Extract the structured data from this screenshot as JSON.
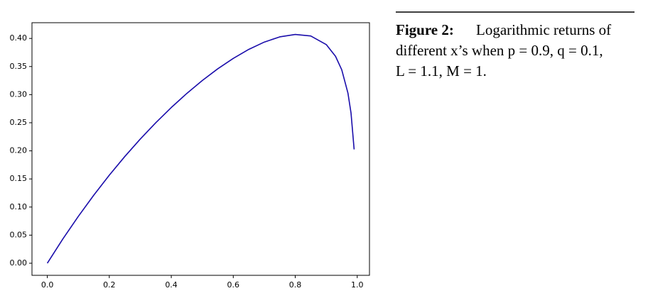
{
  "chart_data": {
    "type": "line",
    "x": [
      0,
      0.05,
      0.1,
      0.15,
      0.2,
      0.25,
      0.3,
      0.35,
      0.4,
      0.45,
      0.5,
      0.55,
      0.6,
      0.65,
      0.7,
      0.75,
      0.8,
      0.85,
      0.9,
      0.93,
      0.95,
      0.97,
      0.98,
      0.99
    ],
    "series": [
      {
        "color": "#1a0dab",
        "values": [
          0,
          0.0431,
          0.0834,
          0.1212,
          0.1567,
          0.1899,
          0.221,
          0.2501,
          0.2771,
          0.3021,
          0.3251,
          0.346,
          0.3645,
          0.3805,
          0.3935,
          0.4028,
          0.4071,
          0.4044,
          0.3891,
          0.3682,
          0.3443,
          0.3028,
          0.2671,
          0.2025
        ]
      }
    ],
    "xlim": [
      -0.0495,
      1.0395
    ],
    "ylim": [
      -0.0215,
      0.428
    ],
    "xticks": [
      {
        "value": 0,
        "label": "0.0"
      },
      0.2,
      0.4,
      0.6,
      0.8,
      {
        "value": 1,
        "label": "1.0"
      }
    ],
    "yticks": [
      {
        "value": 0,
        "label": "0.00"
      },
      0.05,
      {
        "value": 0.1,
        "label": "0.10"
      },
      0.15,
      {
        "value": 0.2,
        "label": "0.20"
      },
      0.25,
      {
        "value": 0.3,
        "label": "0.30"
      },
      0.35,
      {
        "value": 0.4,
        "label": "0.40"
      }
    ]
  },
  "caption": {
    "label": "Figure 2:",
    "lines": [
      "Logarithmic returns of",
      "different x’s when p = 0.9, q = 0.1,",
      "L = 1.1, M = 1."
    ]
  }
}
